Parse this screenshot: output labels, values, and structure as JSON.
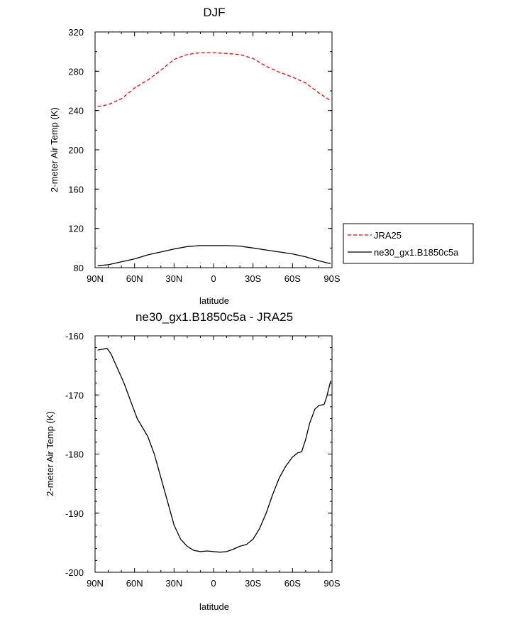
{
  "chart_data": [
    {
      "type": "line",
      "title": "DJF",
      "xlabel": "latitude",
      "ylabel": "2-meter Air Temp (K)",
      "xlim": [
        90,
        -90
      ],
      "ylim": [
        80,
        320
      ],
      "xticks": [
        90,
        60,
        30,
        0,
        -30,
        -60,
        -90
      ],
      "xtick_labels": [
        "90N",
        "60N",
        "30N",
        "0",
        "30S",
        "60S",
        "90S"
      ],
      "yticks": [
        80,
        120,
        160,
        200,
        240,
        280,
        320
      ],
      "ytick_labels": [
        "80",
        "120",
        "160",
        "200",
        "240",
        "280",
        "320"
      ],
      "legend_position": "right",
      "series": [
        {
          "name": "JRA25",
          "color": "#ff0000",
          "dash": "dashed",
          "x": [
            88,
            80,
            70,
            60,
            50,
            40,
            30,
            20,
            10,
            0,
            -10,
            -20,
            -30,
            -40,
            -50,
            -60,
            -70,
            -80,
            -89
          ],
          "y": [
            244,
            246,
            252,
            263,
            271,
            281,
            292,
            297,
            299,
            299,
            298,
            297,
            293,
            285,
            279,
            274,
            268,
            258,
            250
          ]
        },
        {
          "name": "ne30_gx1.B1850c5a",
          "color": "#000000",
          "dash": "solid",
          "x": [
            88,
            80,
            70,
            60,
            50,
            40,
            30,
            20,
            10,
            0,
            -10,
            -20,
            -30,
            -40,
            -50,
            -60,
            -70,
            -80,
            -89
          ],
          "y": [
            82,
            83,
            86,
            89,
            93,
            96,
            99,
            101.5,
            102.5,
            102.5,
            102.5,
            102,
            100,
            98,
            96,
            94,
            91,
            87,
            84
          ]
        }
      ]
    },
    {
      "type": "line",
      "title": "ne30_gx1.B1850c5a - JRA25",
      "xlabel": "latitude",
      "ylabel": "2-meter Air Temp (K)",
      "xlim": [
        90,
        -90
      ],
      "ylim": [
        -200,
        -160
      ],
      "xticks": [
        90,
        60,
        30,
        0,
        -30,
        -60,
        -90
      ],
      "xtick_labels": [
        "90N",
        "60N",
        "30N",
        "0",
        "30S",
        "60S",
        "90S"
      ],
      "yticks": [
        -200,
        -190,
        -180,
        -170,
        -160
      ],
      "ytick_labels": [
        "-200",
        "-190",
        "-180",
        "-170",
        "-160"
      ],
      "series": [
        {
          "name": "ne30_gx1.B1850c5a - JRA25",
          "color": "#000000",
          "dash": "solid",
          "x": [
            88,
            85,
            81,
            78,
            74,
            68,
            63,
            58,
            50,
            45,
            40,
            35,
            30,
            25,
            20,
            15,
            10,
            5,
            0,
            -5,
            -10,
            -15,
            -20,
            -25,
            -30,
            -35,
            -40,
            -45,
            -50,
            -55,
            -60,
            -64,
            -67,
            -70,
            -73,
            -77,
            -80,
            -84,
            -86,
            -89
          ],
          "y": [
            -162.4,
            -162.3,
            -162.1,
            -163.0,
            -165.0,
            -168.0,
            -171.0,
            -174.0,
            -177.0,
            -180.0,
            -184.0,
            -188.0,
            -192.0,
            -194.4,
            -195.6,
            -196.3,
            -196.5,
            -196.4,
            -196.5,
            -196.6,
            -196.5,
            -196.1,
            -195.6,
            -195.3,
            -194.4,
            -192.6,
            -190.0,
            -186.8,
            -184.0,
            -182.0,
            -180.5,
            -179.8,
            -179.6,
            -177.5,
            -174.8,
            -172.4,
            -171.8,
            -171.6,
            -170.3,
            -167.6
          ]
        }
      ]
    }
  ]
}
